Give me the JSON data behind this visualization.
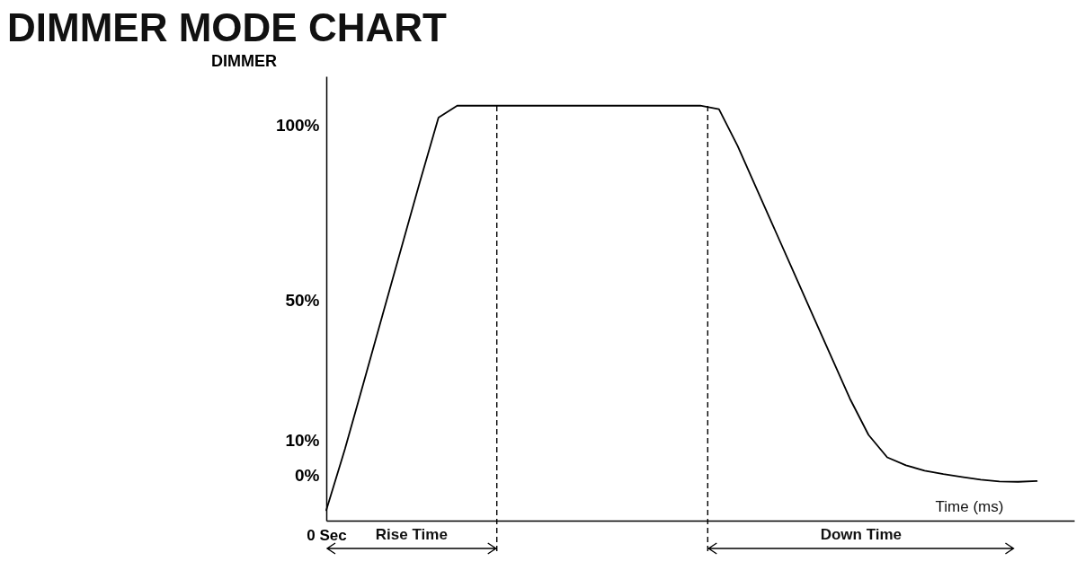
{
  "chart_data": {
    "type": "line",
    "title": "DIMMER MODE CHART",
    "xlabel": "Time (ms)",
    "ylabel": "DIMMER",
    "categories": [
      "0 Sec",
      null,
      null,
      null,
      null,
      null,
      null,
      null,
      null,
      null,
      null,
      null,
      null,
      null,
      null,
      null,
      null,
      null,
      null,
      null,
      null,
      null,
      null,
      null,
      null,
      null,
      null,
      null,
      null,
      null,
      null,
      null,
      null,
      null,
      null,
      null,
      null,
      null,
      null,
      null,
      null
    ],
    "series": [
      {
        "color": "#000000",
        "values": [
          -10,
          7.5,
          26.5,
          45.6,
          64.7,
          83.7,
          102.2,
          105.6,
          105.6,
          105.6,
          105.6,
          105.6,
          105.6,
          105.6,
          105.6,
          105.6,
          105.6,
          105.6,
          105.6,
          105.6,
          105.6,
          104.6,
          94.1,
          82,
          70,
          58,
          45.9,
          33.9,
          21.9,
          11.5,
          5.1,
          2.8,
          1.3,
          0.3,
          -0.5,
          -1.3,
          -1.8,
          -1.9,
          -1.7,
          null,
          null
        ]
      }
    ],
    "ylim": [
      -13,
      114
    ],
    "yticks": [
      {
        "value": 0,
        "label": "0%"
      },
      {
        "value": 10,
        "label": "10%"
      },
      {
        "value": 50,
        "label": "50%"
      },
      {
        "value": 100,
        "label": "100%"
      }
    ],
    "annotations": [
      "Rise Time",
      "Down Time"
    ],
    "grid": false,
    "legend": false,
    "marker": "none",
    "line_style": "solid"
  }
}
